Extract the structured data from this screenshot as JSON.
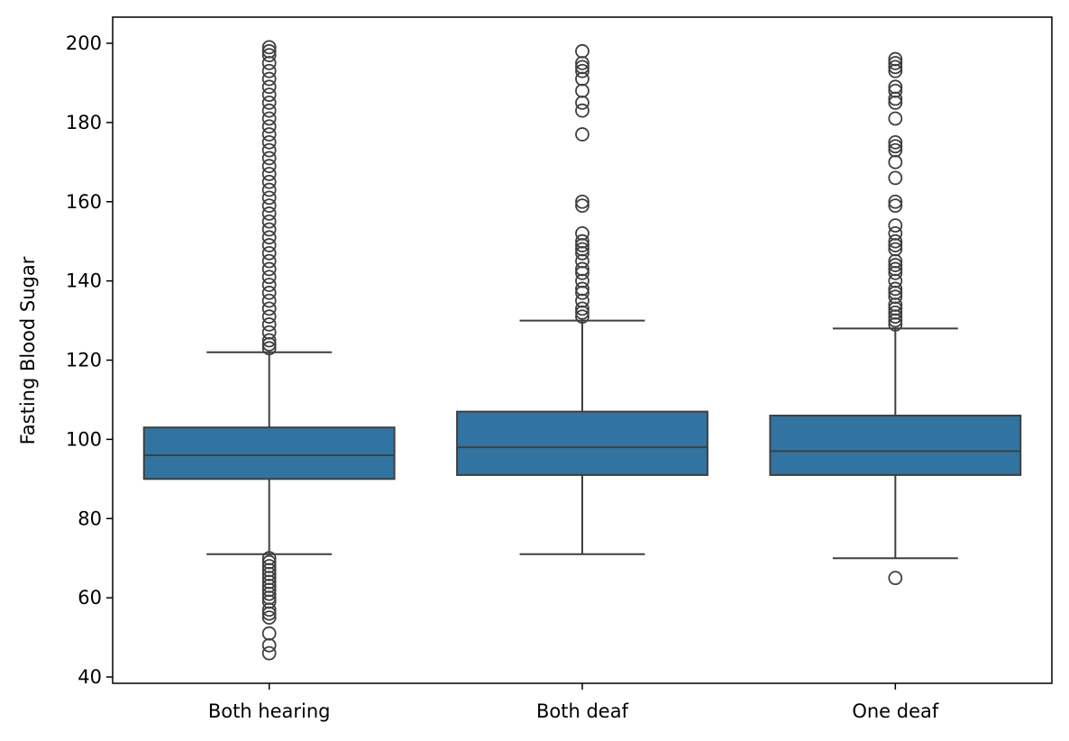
{
  "chart_data": {
    "type": "box",
    "title": "",
    "xlabel": "",
    "ylabel": "Fasting Blood Sugar",
    "ylim": [
      39,
      207
    ],
    "yticks": [
      40,
      60,
      80,
      100,
      120,
      140,
      160,
      180,
      200
    ],
    "grid": false,
    "box_color": "#3274a1",
    "line_color": "#3f3f3f",
    "categories": [
      "Both hearing",
      "Both deaf",
      "One deaf"
    ],
    "boxes": [
      {
        "category": "Both hearing",
        "whisker_low": 71,
        "q1": 90,
        "median": 96,
        "q3": 103,
        "whisker_high": 122,
        "outliers": [
          46,
          48,
          51,
          55,
          56,
          57,
          59,
          60,
          61,
          62,
          63,
          64,
          65,
          66,
          67,
          68,
          69,
          70,
          123,
          124,
          125,
          127,
          129,
          131,
          133,
          135,
          137,
          139,
          141,
          143,
          145,
          147,
          149,
          151,
          153,
          155,
          157,
          159,
          161,
          163,
          165,
          167,
          169,
          171,
          173,
          175,
          177,
          179,
          181,
          183,
          185,
          187,
          189,
          191,
          193,
          195,
          197,
          198,
          199
        ]
      },
      {
        "category": "Both deaf",
        "whisker_low": 71,
        "q1": 91,
        "median": 98,
        "q3": 107,
        "whisker_high": 130,
        "outliers": [
          131,
          132,
          133,
          135,
          137,
          138,
          140,
          142,
          143,
          145,
          147,
          148,
          149,
          150,
          152,
          159,
          160,
          177,
          183,
          185,
          188,
          191,
          193,
          194,
          195,
          198
        ]
      },
      {
        "category": "One deaf",
        "whisker_low": 70,
        "q1": 91,
        "median": 97,
        "q3": 106,
        "whisker_high": 128,
        "outliers": [
          65,
          129,
          130,
          131,
          132,
          133,
          134,
          136,
          137,
          138,
          140,
          142,
          143,
          144,
          145,
          148,
          149,
          150,
          152,
          154,
          159,
          160,
          166,
          170,
          173,
          174,
          175,
          181,
          185,
          186,
          188,
          189,
          193,
          194,
          195,
          196
        ]
      }
    ]
  }
}
